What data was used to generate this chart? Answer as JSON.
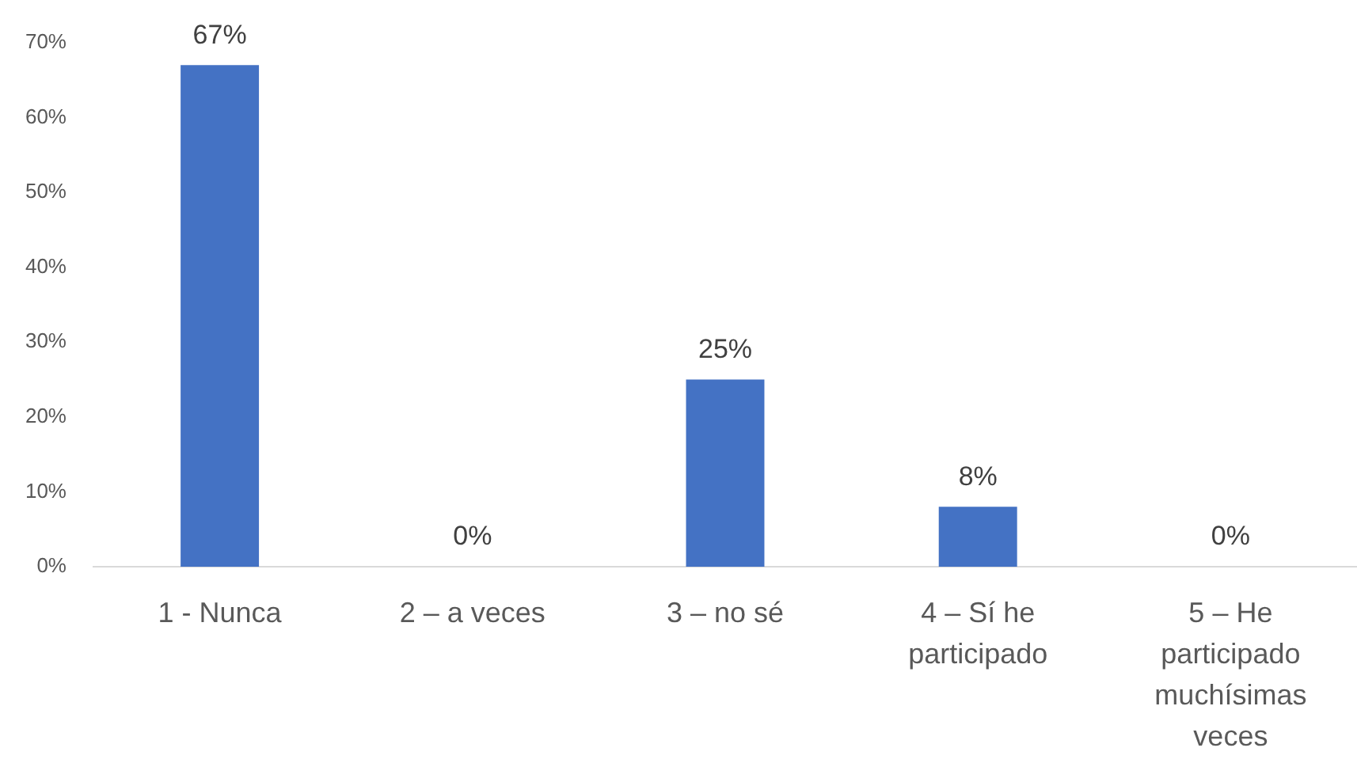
{
  "chart_data": {
    "type": "bar",
    "categories": [
      "1 - Nunca",
      "2 – a veces",
      "3 – no sé",
      "4 – Sí he participado",
      "5 – He participado muchísimas veces"
    ],
    "values": [
      67,
      0,
      25,
      8,
      0
    ],
    "color": "#4472c4",
    "value_labels": [
      "67%",
      "0%",
      "25%",
      "8%",
      "0%"
    ],
    "ylim": [
      0,
      70
    ],
    "yticks": [
      {
        "value": 0,
        "label": "0%"
      },
      {
        "value": 10,
        "label": "10%"
      },
      {
        "value": 20,
        "label": "20%"
      },
      {
        "value": 30,
        "label": "30%"
      },
      {
        "value": 40,
        "label": "40%"
      },
      {
        "value": 50,
        "label": "50%"
      },
      {
        "value": 60,
        "label": "60%"
      },
      {
        "value": 70,
        "label": "70%"
      }
    ]
  }
}
